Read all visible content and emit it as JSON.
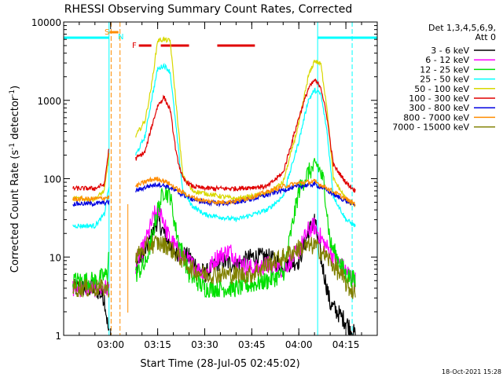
{
  "chart_data": {
    "type": "line",
    "title": "RHESSI Observing Summary Count Rates, Corrected",
    "xlabel": "Start Time (28-Jul-05 02:45:02)",
    "ylabel": "Corrected Count Rate (s^-1 detector^-1)",
    "ylabel_main": "Corrected Count Rate (s",
    "ylabel_sup": "-1",
    "ylabel_mid": " detector",
    "ylabel_sup2": "-1",
    "ylabel_end": ")",
    "y_scale": "log",
    "ylim": [
      1,
      10000
    ],
    "xlim": [
      "02:45:02",
      "04:25:00"
    ],
    "x_ticks": [
      "03:00",
      "03:15",
      "03:30",
      "03:45",
      "04:00",
      "04:15"
    ],
    "y_ticks": [
      "1",
      "10",
      "100",
      "1000",
      "10000"
    ],
    "legend": {
      "placement": "right",
      "header": [
        "Det 1,3,4,5,6,9,",
        "Att 0"
      ],
      "entries": [
        {
          "label": "3 - 6 keV",
          "color": "#000000"
        },
        {
          "label": "6 - 12 keV",
          "color": "#ff00ff"
        },
        {
          "label": "12 - 25 keV",
          "color": "#00e000"
        },
        {
          "label": "25 - 50 keV",
          "color": "#00ffff"
        },
        {
          "label": "50 - 100 keV",
          "color": "#d8d800"
        },
        {
          "label": "100 - 300 keV",
          "color": "#e00000"
        },
        {
          "label": "300 - 800 keV",
          "color": "#0000e0"
        },
        {
          "label": "800 - 7000 keV",
          "color": "#ff8c00"
        },
        {
          "label": "7000 - 15000 keV",
          "color": "#808000"
        }
      ]
    },
    "flags": [
      {
        "label": "S",
        "color": "#ff8c00"
      },
      {
        "label": "N",
        "color": "#00ffff"
      },
      {
        "label": "F",
        "color": "#e00000"
      }
    ],
    "timestamp": "18-Oct-2021 15:28",
    "series": [
      {
        "name": "3 - 6 keV",
        "color": "#000000",
        "x": [
          "02:48",
          "02:55",
          "02:58",
          "02:59:30",
          "03:08",
          "03:11",
          "03:13",
          "03:15",
          "03:17",
          "03:20",
          "03:25",
          "03:30",
          "03:35",
          "03:40",
          "03:45",
          "03:50",
          "03:55",
          "04:00",
          "04:03",
          "04:05",
          "04:07",
          "04:10",
          "04:15",
          "04:18"
        ],
        "y": [
          4,
          4,
          3,
          1,
          8,
          12,
          18,
          30,
          20,
          12,
          10,
          6,
          9,
          8,
          10,
          10,
          8,
          9,
          20,
          30,
          10,
          2.5,
          1.5,
          1
        ]
      },
      {
        "name": "6 - 12 keV",
        "color": "#ff00ff",
        "x": [
          "02:48",
          "02:55",
          "02:59:30",
          "03:08",
          "03:11",
          "03:14",
          "03:16",
          "03:18",
          "03:22",
          "03:26",
          "03:30",
          "03:34",
          "03:38",
          "03:42",
          "03:46",
          "03:50",
          "03:55",
          "04:00",
          "04:03",
          "04:05",
          "04:08",
          "04:12",
          "04:18"
        ],
        "y": [
          4,
          4,
          4,
          8,
          15,
          35,
          40,
          20,
          11,
          8,
          6,
          10,
          12,
          8,
          7,
          8,
          7,
          12,
          22,
          25,
          15,
          9,
          5
        ]
      },
      {
        "name": "12 - 25 keV",
        "color": "#00e000",
        "x": [
          "02:48",
          "02:55",
          "02:59",
          "02:59:30",
          "03:08",
          "03:11",
          "03:13",
          "03:15",
          "03:17",
          "03:19",
          "03:21",
          "03:25",
          "03:30",
          "03:40",
          "03:50",
          "03:55",
          "04:00",
          "04:03",
          "04:06",
          "04:08",
          "04:10",
          "04:15",
          "04:18"
        ],
        "y": [
          5,
          5,
          6,
          13,
          6,
          8,
          16,
          40,
          70,
          60,
          20,
          6,
          4,
          4,
          5,
          6,
          70,
          120,
          150,
          90,
          15,
          6,
          5
        ]
      },
      {
        "name": "25 - 50 keV",
        "color": "#00ffff",
        "x": [
          "02:48",
          "02:55",
          "02:58",
          "02:59:30",
          "03:08",
          "03:11",
          "03:13",
          "03:15",
          "03:17",
          "03:19",
          "03:21",
          "03:23",
          "03:26",
          "03:30",
          "03:40",
          "03:50",
          "03:55",
          "04:00",
          "04:03",
          "04:05",
          "04:07",
          "04:09",
          "04:11",
          "04:15",
          "04:18"
        ],
        "y": [
          25,
          25,
          35,
          80,
          200,
          350,
          1000,
          2500,
          2800,
          2300,
          400,
          70,
          45,
          35,
          30,
          40,
          60,
          300,
          1000,
          1350,
          1200,
          400,
          60,
          30,
          25
        ]
      },
      {
        "name": "50 - 100 keV",
        "color": "#d8d800",
        "x": [
          "02:48",
          "02:55",
          "02:58",
          "02:59:30",
          "03:08",
          "03:11",
          "03:13",
          "03:15",
          "03:17",
          "03:19",
          "03:21",
          "03:23",
          "03:26",
          "03:30",
          "03:40",
          "03:50",
          "03:55",
          "04:00",
          "04:03",
          "04:05",
          "04:07",
          "04:09",
          "04:11",
          "04:15",
          "04:18"
        ],
        "y": [
          55,
          55,
          70,
          200,
          350,
          550,
          1500,
          5800,
          6000,
          5700,
          800,
          110,
          70,
          65,
          55,
          65,
          90,
          500,
          2000,
          3200,
          2900,
          800,
          100,
          55,
          45
        ]
      },
      {
        "name": "100 - 300 keV",
        "color": "#e00000",
        "x": [
          "02:48",
          "02:55",
          "02:58",
          "02:59:30",
          "03:08",
          "03:11",
          "03:13",
          "03:15",
          "03:17",
          "03:19",
          "03:21",
          "03:23",
          "03:26",
          "03:30",
          "03:40",
          "03:50",
          "03:55",
          "04:00",
          "04:03",
          "04:05",
          "04:07",
          "04:09",
          "04:11",
          "04:15",
          "04:18"
        ],
        "y": [
          75,
          75,
          85,
          250,
          180,
          220,
          450,
          850,
          1100,
          750,
          200,
          100,
          80,
          75,
          75,
          80,
          120,
          600,
          1400,
          1800,
          1500,
          600,
          150,
          90,
          70
        ]
      },
      {
        "name": "300 - 800 keV",
        "color": "#0000e0",
        "x": [
          "02:48",
          "02:55",
          "02:59:30",
          "03:08",
          "03:12",
          "03:15",
          "03:18",
          "03:22",
          "03:26",
          "03:30",
          "03:35",
          "03:40",
          "03:45",
          "03:50",
          "03:55",
          "04:00",
          "04:05",
          "04:08",
          "04:12",
          "04:16",
          "04:18"
        ],
        "y": [
          48,
          48,
          50,
          70,
          80,
          85,
          80,
          65,
          55,
          50,
          48,
          50,
          55,
          62,
          72,
          80,
          85,
          75,
          60,
          50,
          46
        ]
      },
      {
        "name": "800 - 7000 keV",
        "color": "#ff8c00",
        "x": [
          "02:48",
          "02:55",
          "02:59:30",
          "03:08",
          "03:12",
          "03:15",
          "03:18",
          "03:22",
          "03:26",
          "03:30",
          "03:35",
          "03:40",
          "03:45",
          "03:50",
          "03:55",
          "04:00",
          "04:05",
          "04:08",
          "04:12",
          "04:16",
          "04:18"
        ],
        "y": [
          55,
          55,
          58,
          80,
          95,
          100,
          90,
          70,
          58,
          52,
          50,
          52,
          58,
          68,
          80,
          88,
          92,
          80,
          65,
          52,
          48
        ]
      },
      {
        "name": "7000 - 15000 keV",
        "color": "#808000",
        "x": [
          "02:48",
          "02:55",
          "02:59:30",
          "03:08",
          "03:12",
          "03:15",
          "03:18",
          "03:22",
          "03:26",
          "03:30",
          "03:35",
          "03:40",
          "03:45",
          "03:50",
          "03:55",
          "04:00",
          "04:05",
          "04:08",
          "04:12",
          "04:16",
          "04:18"
        ],
        "y": [
          4,
          4,
          4,
          10,
          14,
          15,
          14,
          10,
          7,
          6,
          6,
          6,
          6,
          8,
          10,
          13,
          14,
          11,
          7,
          4,
          3.5
        ]
      }
    ]
  }
}
